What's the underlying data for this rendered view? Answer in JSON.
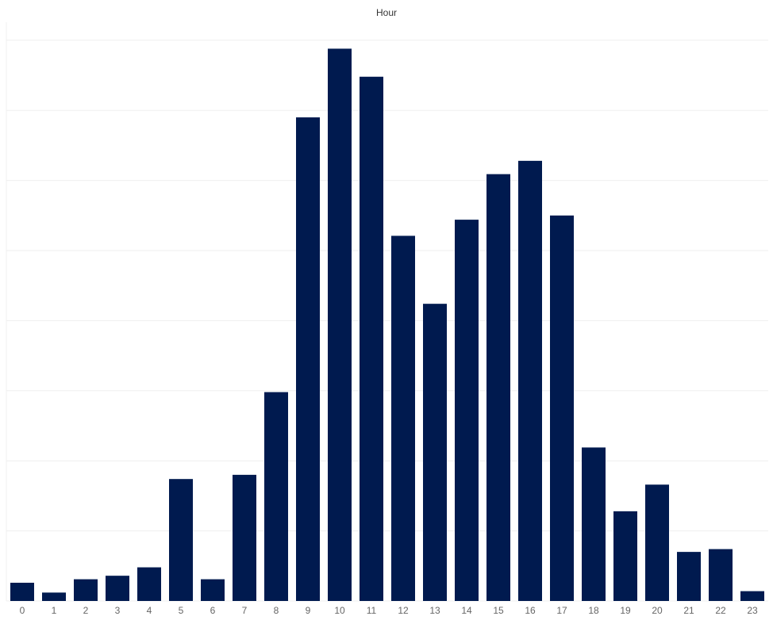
{
  "chart_data": {
    "type": "bar",
    "title": "Hour",
    "categories": [
      "0",
      "1",
      "2",
      "3",
      "4",
      "5",
      "6",
      "7",
      "8",
      "9",
      "10",
      "11",
      "12",
      "13",
      "14",
      "15",
      "16",
      "17",
      "18",
      "19",
      "20",
      "21",
      "22",
      "23"
    ],
    "values": [
      0.26,
      0.12,
      0.31,
      0.36,
      0.48,
      1.74,
      0.31,
      1.8,
      2.98,
      6.9,
      7.88,
      7.48,
      5.21,
      4.24,
      5.44,
      6.09,
      6.28,
      5.5,
      2.19,
      1.28,
      1.66,
      0.7,
      0.74,
      0.14
    ],
    "color": "#001a4f",
    "ylim": [
      0,
      8.25
    ],
    "yticks": [
      0,
      1,
      2,
      3,
      4,
      5,
      6,
      7,
      8
    ],
    "grid": true
  }
}
